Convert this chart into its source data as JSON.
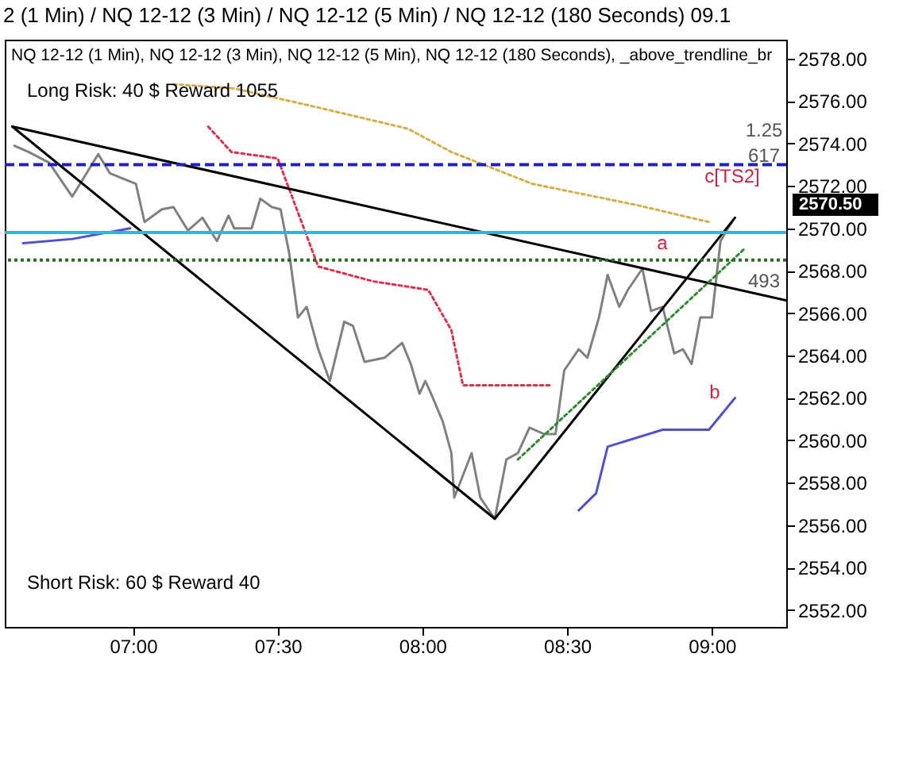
{
  "chart_data": {
    "type": "line",
    "title": "2 (1 Min) / NQ 12-12 (3 Min) / NQ 12-12 (5 Min) / NQ 12-12 (180 Seconds)  09.1",
    "xlim": [
      6.557,
      9.257
    ],
    "xticks": [
      {
        "value": 7,
        "label": "07:00"
      },
      {
        "value": 7.5,
        "label": "07:30"
      },
      {
        "value": 8,
        "label": "08:00"
      },
      {
        "value": 8.5,
        "label": "08:30"
      },
      {
        "value": 9,
        "label": "09:00"
      }
    ],
    "ylim": [
      2551.2,
      2578.9
    ],
    "yticks": [
      {
        "value": 2552,
        "label": "2552.00"
      },
      {
        "value": 2554,
        "label": "2554.00"
      },
      {
        "value": 2556,
        "label": "2556.00"
      },
      {
        "value": 2558,
        "label": "2558.00"
      },
      {
        "value": 2560,
        "label": "2560.00"
      },
      {
        "value": 2562,
        "label": "2562.00"
      },
      {
        "value": 2564,
        "label": "2564.00"
      },
      {
        "value": 2566,
        "label": "2566.00"
      },
      {
        "value": 2568,
        "label": "2568.00"
      },
      {
        "value": 2570,
        "label": "2570.00"
      },
      {
        "value": 2572,
        "label": "2572.00"
      },
      {
        "value": 2574,
        "label": "2574.00"
      },
      {
        "value": 2576,
        "label": "2576.00"
      },
      {
        "value": 2578,
        "label": "2578.00"
      }
    ],
    "grid": false,
    "marker": "none",
    "series": [
      {
        "color": "#d4b04a",
        "line_style": "dotted",
        "x": [
          7.14,
          7.35,
          7.64,
          7.95,
          8.1,
          8.38,
          8.74,
          8.99
        ],
        "values": [
          2576.8,
          2576.6,
          2575.7,
          2574.7,
          2573.6,
          2572.1,
          2571.1,
          2570.3
        ]
      },
      {
        "color": "#e03050",
        "line_style": "dotted",
        "x": [
          7.26,
          7.34,
          7.5,
          7.64,
          7.83,
          8.02,
          8.1,
          8.14,
          8.45
        ],
        "values": [
          2574.8,
          2573.6,
          2573.3,
          2568.2,
          2567.5,
          2567.1,
          2565.2,
          2562.6,
          2562.6
        ]
      },
      {
        "color": "#5050d0",
        "x": [
          6.62,
          6.79,
          6.99
        ],
        "values": [
          2569.3,
          2569.5,
          2570.0
        ]
      },
      {
        "color": "#5050d0",
        "x": [
          8.54,
          8.6,
          8.64,
          8.83,
          8.99,
          9.08
        ],
        "values": [
          2556.7,
          2557.5,
          2559.7,
          2560.5,
          2560.5,
          2562.0
        ]
      },
      {
        "color": "#808080",
        "x": [
          6.59,
          6.64,
          6.71,
          6.79,
          6.88,
          6.92,
          7.01,
          7.04,
          7.1,
          7.14,
          7.19,
          7.24,
          7.29,
          7.33,
          7.35,
          7.41,
          7.44,
          7.48,
          7.51,
          7.54,
          7.57,
          7.6,
          7.64,
          7.68,
          7.73,
          7.76,
          7.8,
          7.87,
          7.93,
          7.96,
          7.99,
          8.01,
          8.03,
          8.07,
          8.1,
          8.11,
          8.17,
          8.2,
          8.25,
          8.29,
          8.33,
          8.37,
          8.42,
          8.46,
          8.49,
          8.54,
          8.57,
          8.61,
          8.64,
          8.68,
          8.71,
          8.76,
          8.79,
          8.83,
          8.87,
          8.9,
          8.93,
          8.96,
          9.0,
          9.03,
          9.06,
          9.07
        ],
        "values": [
          2573.9,
          2573.6,
          2573.1,
          2571.5,
          2573.5,
          2572.6,
          2572.1,
          2570.3,
          2570.9,
          2571.0,
          2569.9,
          2570.5,
          2569.4,
          2570.6,
          2570.0,
          2570.0,
          2571.4,
          2571.0,
          2570.9,
          2568.8,
          2565.8,
          2566.3,
          2564.3,
          2562.8,
          2565.6,
          2565.4,
          2563.7,
          2563.9,
          2564.6,
          2563.6,
          2562.2,
          2562.8,
          2562.2,
          2560.9,
          2559.4,
          2557.3,
          2559.4,
          2557.3,
          2556.3,
          2559.1,
          2559.4,
          2560.6,
          2560.3,
          2560.3,
          2563.3,
          2564.3,
          2563.9,
          2565.8,
          2567.8,
          2566.3,
          2567.1,
          2568.1,
          2566.1,
          2566.3,
          2564.1,
          2564.3,
          2563.6,
          2565.8,
          2565.8,
          2569.4,
          2570.1,
          2570.3
        ]
      },
      {
        "color": "#000000",
        "x": [
          6.583,
          9.257
        ],
        "values": [
          2574.8,
          2566.6
        ]
      },
      {
        "color": "#000000",
        "x": [
          6.583,
          8.25,
          9.08
        ],
        "values": [
          2574.8,
          2556.3,
          2570.5
        ]
      },
      {
        "color": "#2e8b2e",
        "line_style": "dotted",
        "x": [
          8.33,
          9.11
        ],
        "values": [
          2559.1,
          2569.0
        ]
      }
    ],
    "ref_lines": [
      {
        "axis": "y",
        "value": 2573.0,
        "color": "#2020c0",
        "line_style": "dashed"
      },
      {
        "axis": "y",
        "value": 2569.8,
        "color": "#20c0d0"
      },
      {
        "axis": "y",
        "value": 2568.5,
        "color": "#207020",
        "line_style": "dotted"
      }
    ],
    "annotations": [
      "NQ 12-12 (1 Min), NQ 12-12 (3 Min), NQ 12-12 (5 Min), NQ 12-12 (180 Seconds), _above_trendline_br",
      "Long Risk: 40 $ Reward 1055",
      "Short Risk: 60 $ Reward 40",
      "a",
      "b",
      "c[TS2]",
      "1.25",
      "617",
      "493",
      "2570.50"
    ]
  }
}
